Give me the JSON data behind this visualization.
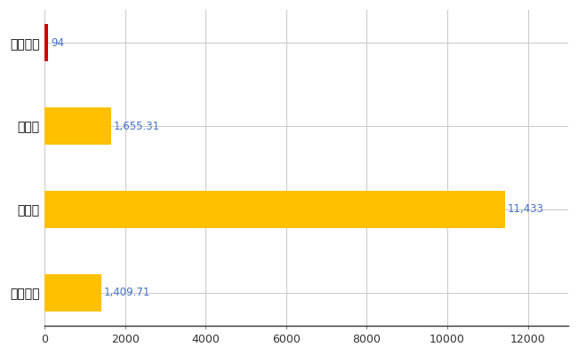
{
  "categories": [
    "全国平均",
    "県最大",
    "県平均",
    "東伊豆町"
  ],
  "values": [
    1409.71,
    11433,
    1655.31,
    94
  ],
  "bar_colors": [
    "#FFC000",
    "#FFC000",
    "#FFC000",
    "#CC0000"
  ],
  "value_labels": [
    "1,409.71",
    "11,433",
    "1,655.31",
    "94"
  ],
  "label_color": "#4472C4",
  "xlim": [
    0,
    13000
  ],
  "xticks": [
    0,
    2000,
    4000,
    6000,
    8000,
    10000,
    12000
  ],
  "xtick_labels": [
    "0",
    "2000",
    "4000",
    "6000",
    "8000",
    "10000",
    "12000"
  ],
  "grid_color": "#CCCCCC",
  "bar_height": 0.45,
  "figsize": [
    6.5,
    4.0
  ],
  "dpi": 100,
  "bg_color": "#FFFFFF"
}
